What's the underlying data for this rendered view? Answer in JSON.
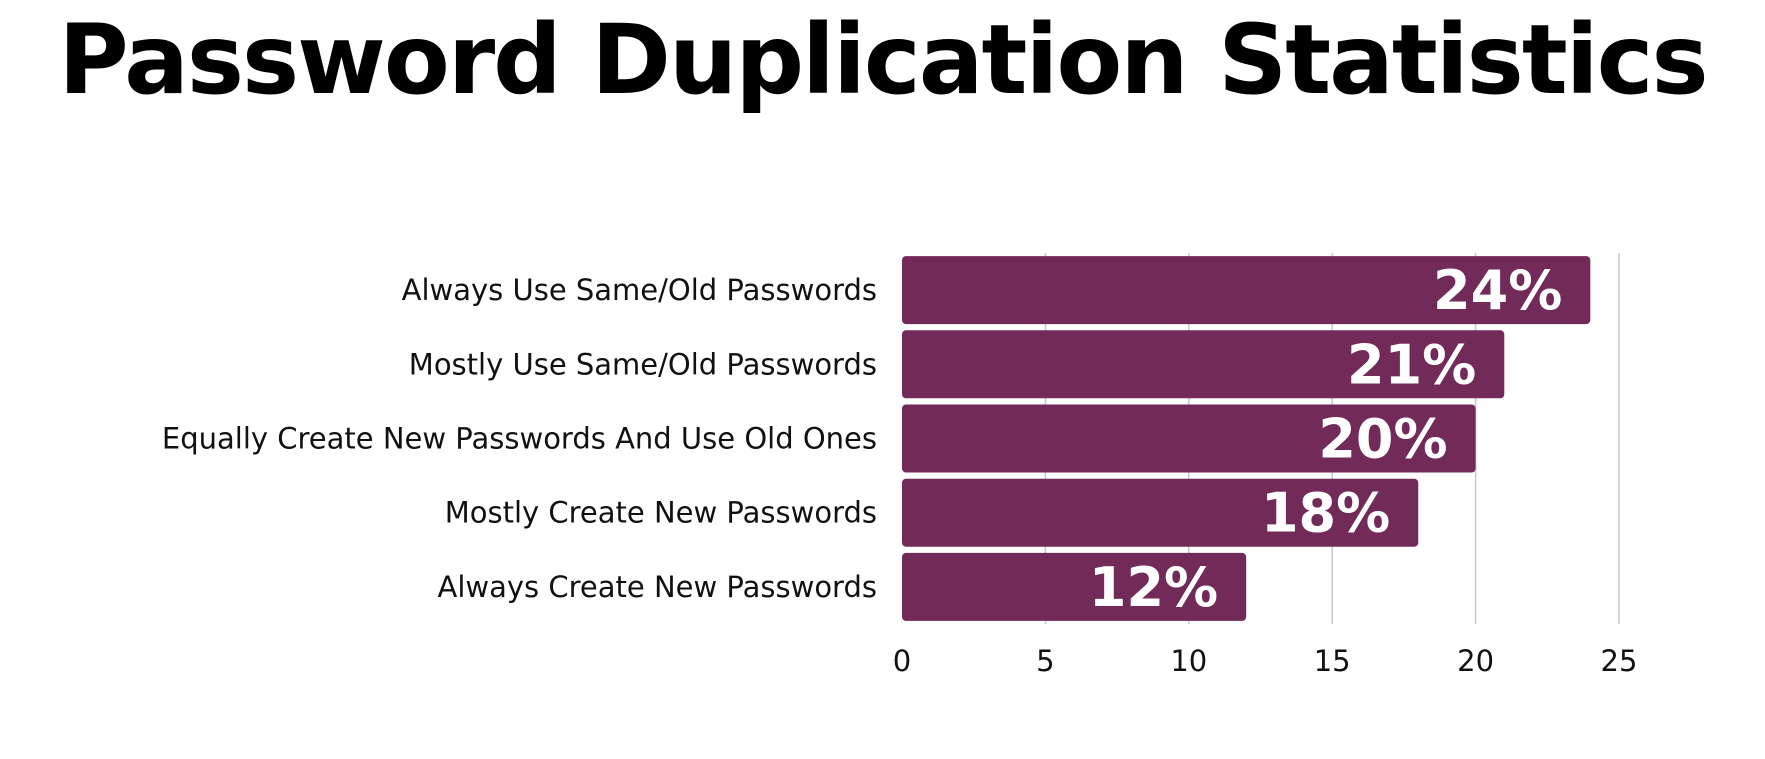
{
  "title": "Password Duplication Statistics",
  "colors": {
    "bar": "#722A58",
    "grid": "#C8C8C8",
    "text": "#111111",
    "data_label": "#FFFFFF"
  },
  "chart_data": {
    "type": "bar",
    "orientation": "horizontal",
    "title": "Password Duplication Statistics",
    "categories": [
      "Always Use Same/Old Passwords",
      "Mostly Use Same/Old Passwords",
      "Equally Create New Passwords And Use Old Ones",
      "Mostly Create New Passwords",
      "Always Create New Passwords"
    ],
    "values": [
      24,
      21,
      20,
      18,
      12
    ],
    "data_labels": [
      "24%",
      "21%",
      "20%",
      "18%",
      "12%"
    ],
    "xlim": [
      0,
      25
    ],
    "xticks": [
      0,
      5,
      10,
      15,
      20,
      25
    ],
    "xlabel": "",
    "ylabel": "",
    "grid": true,
    "legend": "none"
  }
}
